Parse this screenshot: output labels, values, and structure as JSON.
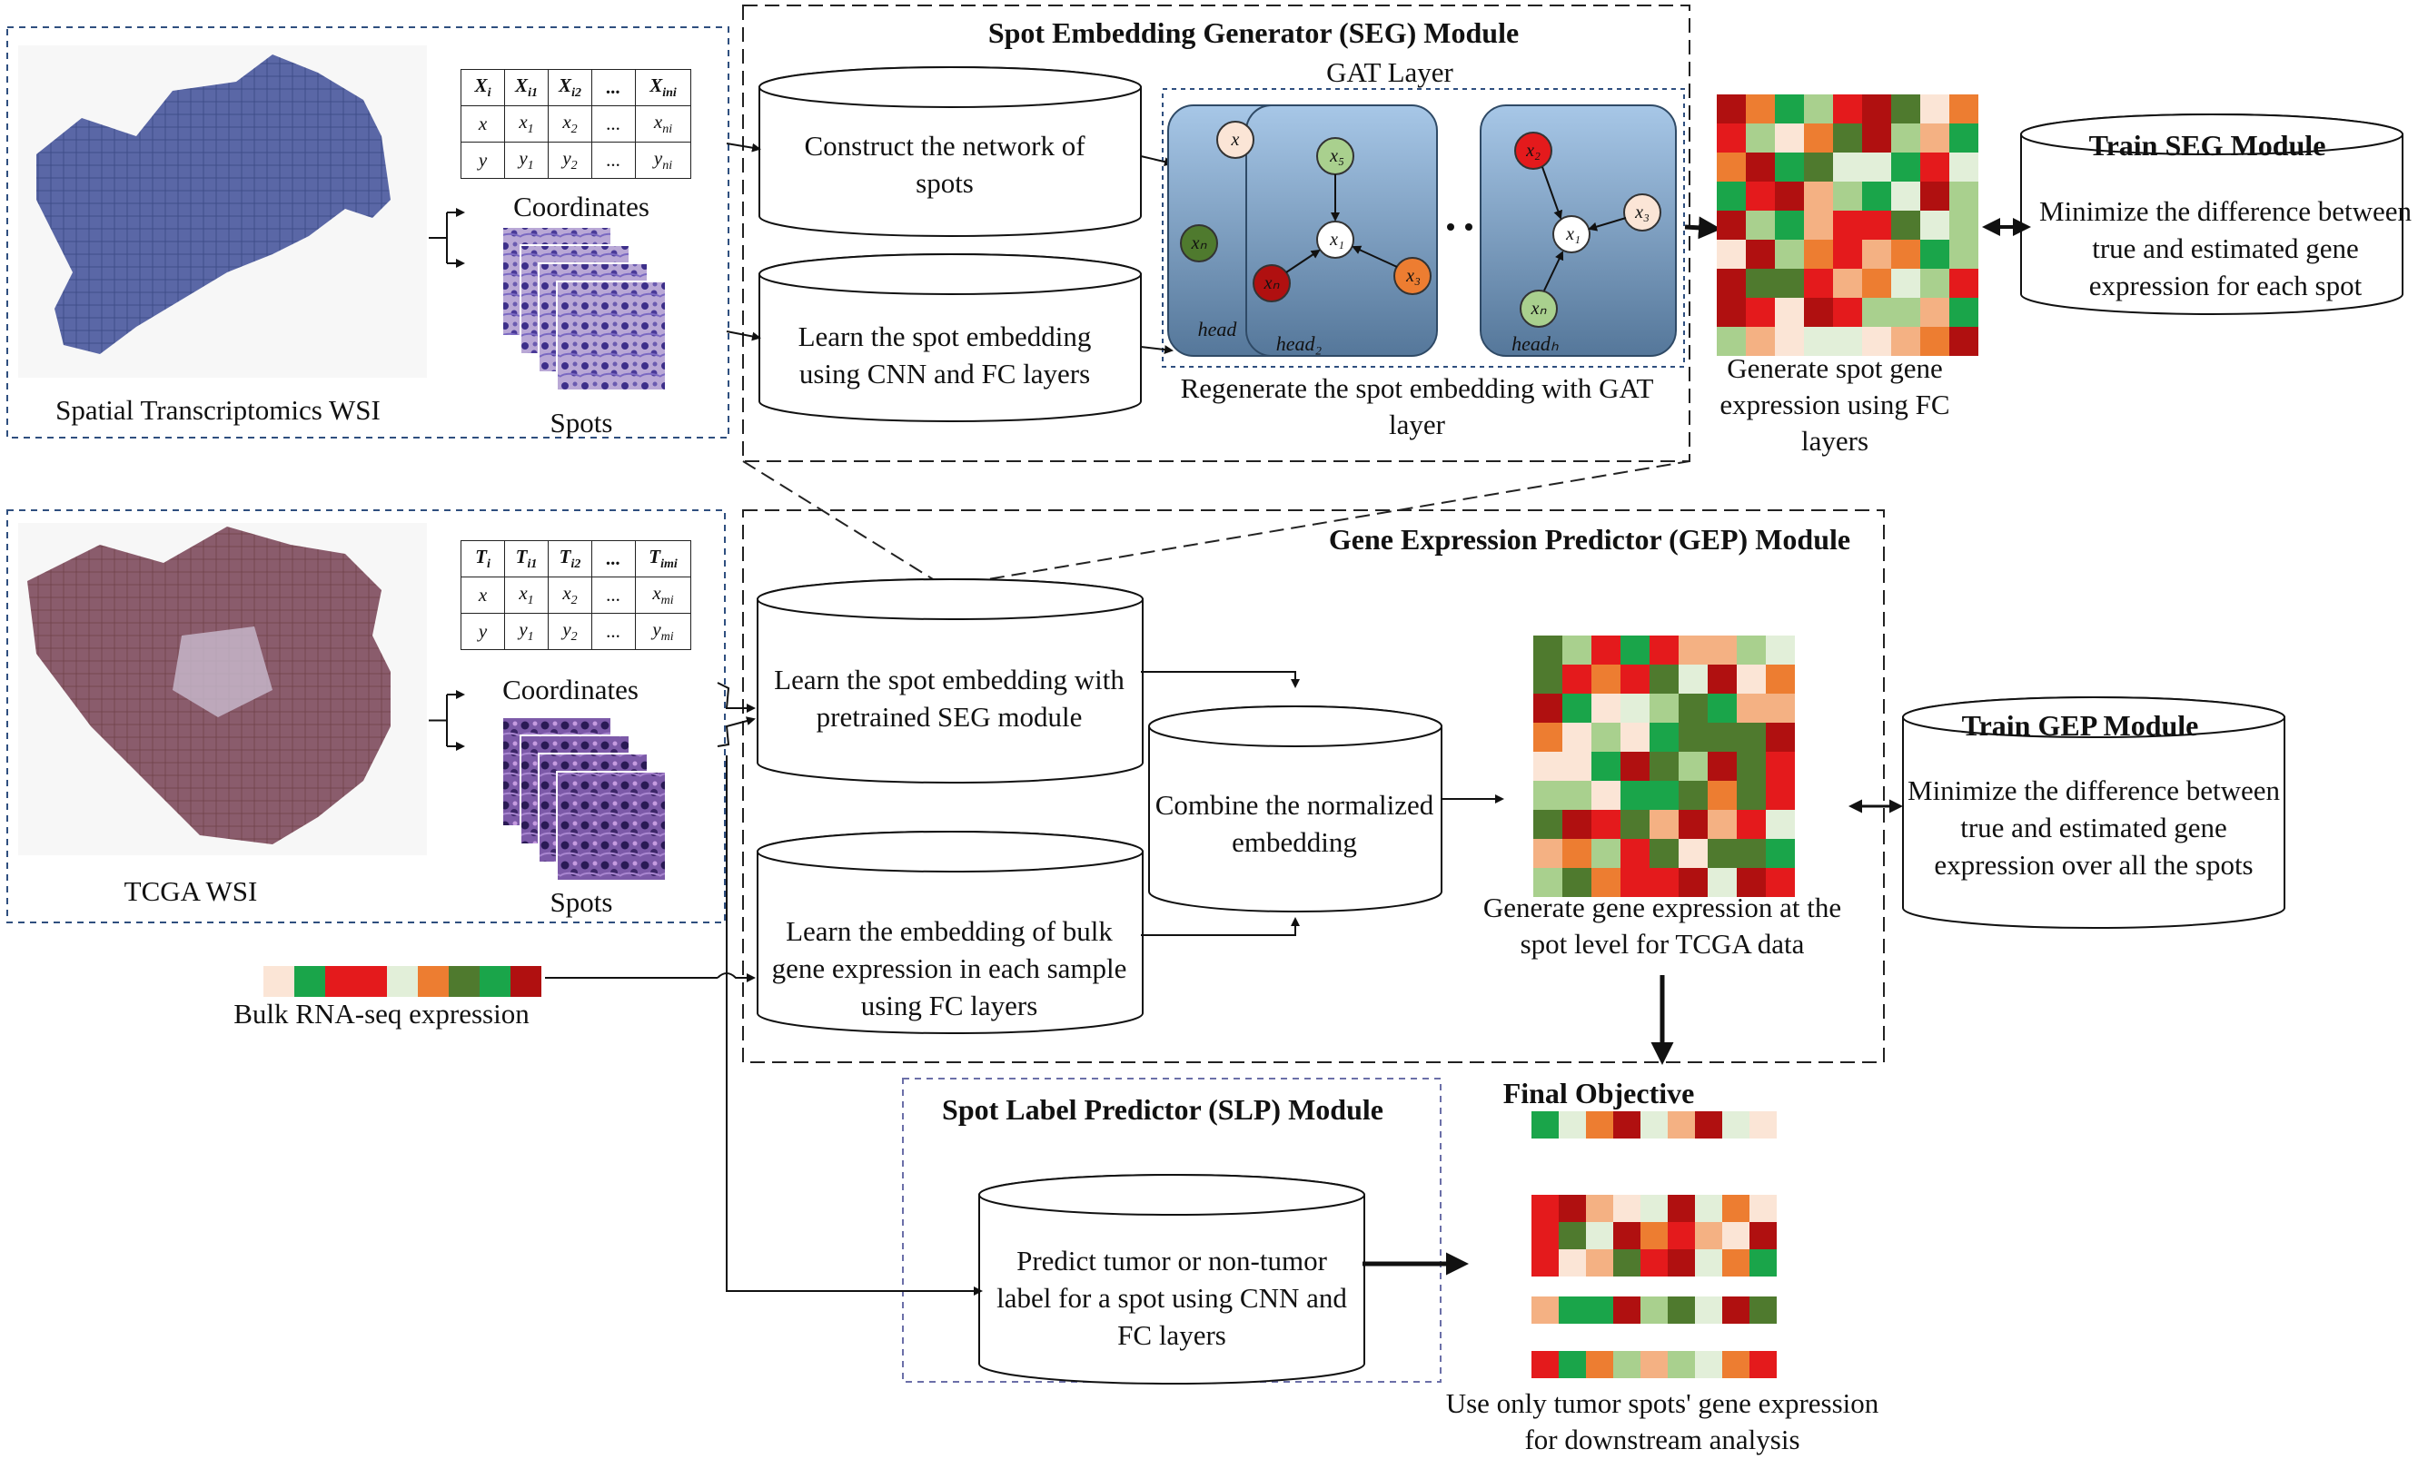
{
  "modules": {
    "seg_title": "Spot Embedding Generator (SEG) Module",
    "gep_title": "Gene Expression Predictor (GEP) Module",
    "slp_title": "Spot Label Predictor (SLP) Module",
    "gat_layer": "GAT Layer"
  },
  "inputs": {
    "st_wsi": "Spatial Transcriptomics WSI",
    "tcga_wsi": "TCGA WSI",
    "coordinates": "Coordinates",
    "spots": "Spots",
    "bulk": "Bulk RNA-seq expression",
    "st_table": {
      "rows": [
        [
          "X_i",
          "X_i1",
          "X_i2",
          "...",
          "X_in_i"
        ],
        [
          "x",
          "x_1",
          "x_2",
          "...",
          "x_n_i"
        ],
        [
          "y",
          "y_1",
          "y_2",
          "...",
          "y_n_i"
        ]
      ]
    },
    "tcga_table": {
      "rows": [
        [
          "T_i",
          "T_i1",
          "T_i2",
          "...",
          "T_im_i"
        ],
        [
          "x",
          "x_1",
          "x_2",
          "...",
          "x_m_i"
        ],
        [
          "y",
          "y_1",
          "y_2",
          "...",
          "y_m_i"
        ]
      ]
    }
  },
  "seg": {
    "construct": "Construct the network of spots",
    "learn": "Learn the spot embedding using CNN and FC layers",
    "regenerate": "Regenerate the spot embedding with GAT layer",
    "generate": "Generate spot gene expression using FC layers",
    "heads": [
      "head_1",
      "head_2",
      "head_h"
    ],
    "nodes": [
      "x_1",
      "x_2",
      "x_3",
      "x_5",
      "x_n_i",
      "x_n_j"
    ]
  },
  "train_seg": {
    "title": "Train SEG Module",
    "text": "Minimize the difference between true and estimated gene expression for each spot"
  },
  "gep": {
    "learn_spot": "Learn the spot embedding with pretrained SEG module",
    "learn_bulk": "Learn the embedding of bulk gene expression in each sample using FC layers",
    "combine": "Combine the normalized embedding",
    "generate": "Generate gene expression at the spot level for TCGA data"
  },
  "train_gep": {
    "title": "Train GEP Module",
    "text": "Minimize the difference between true and estimated gene expression over all the spots"
  },
  "slp": {
    "predict": "Predict tumor or non-tumor label for a spot using CNN and FC layers"
  },
  "final": {
    "title": "Final Objective",
    "note": "Use only tumor spots' gene expression for downstream analysis"
  },
  "colors": {
    "dark_green": "#4f7a2e",
    "green": "#1aa54a",
    "light_green": "#a9d08e",
    "red": "#e41a1c",
    "dark_red": "#b01010",
    "orange": "#ed7d31",
    "peach": "#f4b183",
    "light_peach": "#fbe5d6",
    "pale_green": "#e2efd9",
    "module_border": "#2f4f7f",
    "gat_card_top": "#a7c7e7",
    "gat_card_bottom": "#55779a"
  }
}
